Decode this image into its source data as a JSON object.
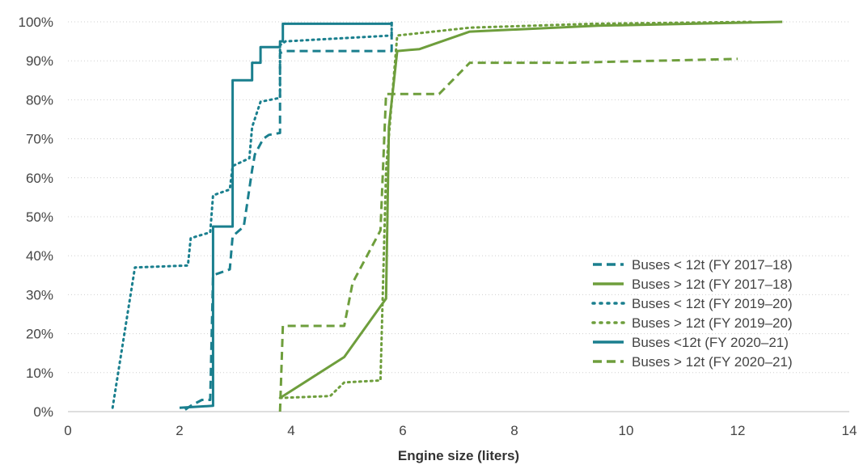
{
  "chart_data": {
    "type": "line",
    "title": "",
    "xlabel": "Engine size (liters)",
    "ylabel": "",
    "xlim": [
      0,
      14
    ],
    "ylim": [
      0,
      100
    ],
    "x_ticks": [
      "0",
      "2",
      "4",
      "6",
      "8",
      "10",
      "12",
      "14"
    ],
    "y_ticks": [
      "0%",
      "10%",
      "20%",
      "30%",
      "40%",
      "50%",
      "60%",
      "70%",
      "80%",
      "90%",
      "100%"
    ],
    "grid": "horizontal dotted",
    "legend_position": "bottom-right",
    "series": [
      {
        "name": "Buses < 12t (FY 2017–18)",
        "color": "#1a7f8e",
        "style": "dashed",
        "points": [
          [
            2.1,
            0.5
          ],
          [
            2.2,
            1.5
          ],
          [
            2.4,
            3
          ],
          [
            2.55,
            3
          ],
          [
            2.6,
            35
          ],
          [
            2.7,
            35.5
          ],
          [
            2.9,
            36.5
          ],
          [
            2.95,
            45
          ],
          [
            3.15,
            47.5
          ],
          [
            3.3,
            62
          ],
          [
            3.35,
            66
          ],
          [
            3.5,
            70
          ],
          [
            3.6,
            71
          ],
          [
            3.8,
            71.5
          ],
          [
            3.8,
            92
          ],
          [
            3.9,
            92.5
          ],
          [
            5.8,
            92.5
          ],
          [
            5.8,
            100
          ]
        ]
      },
      {
        "name": "Buses > 12t (FY 2017–18)",
        "color": "#6e9e3c",
        "style": "solid",
        "points": [
          [
            3.8,
            3.5
          ],
          [
            4.95,
            14
          ],
          [
            5.7,
            29
          ],
          [
            5.75,
            73
          ],
          [
            5.9,
            92.5
          ],
          [
            6.3,
            93
          ],
          [
            7.2,
            97.5
          ],
          [
            9.5,
            99
          ],
          [
            12.8,
            100
          ]
        ]
      },
      {
        "name": "Buses  < 12t (FY 2019–20)",
        "color": "#1a7f8e",
        "style": "dotted",
        "points": [
          [
            0.8,
            1
          ],
          [
            1.2,
            37
          ],
          [
            2.15,
            37.5
          ],
          [
            2.2,
            44.5
          ],
          [
            2.55,
            46
          ],
          [
            2.6,
            55.5
          ],
          [
            2.9,
            57
          ],
          [
            2.95,
            63
          ],
          [
            3.25,
            65
          ],
          [
            3.3,
            73
          ],
          [
            3.45,
            79.5
          ],
          [
            3.8,
            80.5
          ],
          [
            3.8,
            94
          ],
          [
            3.9,
            95
          ],
          [
            5.8,
            96.5
          ],
          [
            5.8,
            100
          ]
        ]
      },
      {
        "name": "Buses  > 12t (FY 2019–20)",
        "color": "#6e9e3c",
        "style": "dotted",
        "points": [
          [
            3.8,
            3.5
          ],
          [
            4.7,
            4
          ],
          [
            4.95,
            7.5
          ],
          [
            5.6,
            8
          ],
          [
            5.7,
            62
          ],
          [
            5.9,
            96.5
          ],
          [
            7.2,
            98.5
          ],
          [
            9.4,
            99.5
          ],
          [
            12.3,
            100
          ]
        ]
      },
      {
        "name": "Buses <12t (FY 2020–21)",
        "color": "#1a7f8e",
        "style": "solid",
        "points": [
          [
            2.0,
            1
          ],
          [
            2.6,
            1.5
          ],
          [
            2.6,
            47.5
          ],
          [
            2.95,
            47.5
          ],
          [
            2.95,
            85
          ],
          [
            3.3,
            85
          ],
          [
            3.3,
            89.5
          ],
          [
            3.45,
            89.5
          ],
          [
            3.45,
            93.5
          ],
          [
            3.8,
            93.5
          ],
          [
            3.8,
            95
          ],
          [
            3.85,
            95
          ],
          [
            3.85,
            99.5
          ],
          [
            5.8,
            99.5
          ]
        ]
      },
      {
        "name": "Buses > 12t (FY 2020–21)",
        "color": "#6e9e3c",
        "style": "dashed",
        "points": [
          [
            3.8,
            0
          ],
          [
            3.85,
            22
          ],
          [
            4.95,
            22
          ],
          [
            5.1,
            33
          ],
          [
            5.6,
            46.5
          ],
          [
            5.7,
            81.5
          ],
          [
            6.65,
            81.5
          ],
          [
            7.2,
            89.5
          ],
          [
            9,
            89.5
          ],
          [
            12,
            90.5
          ]
        ]
      }
    ]
  }
}
